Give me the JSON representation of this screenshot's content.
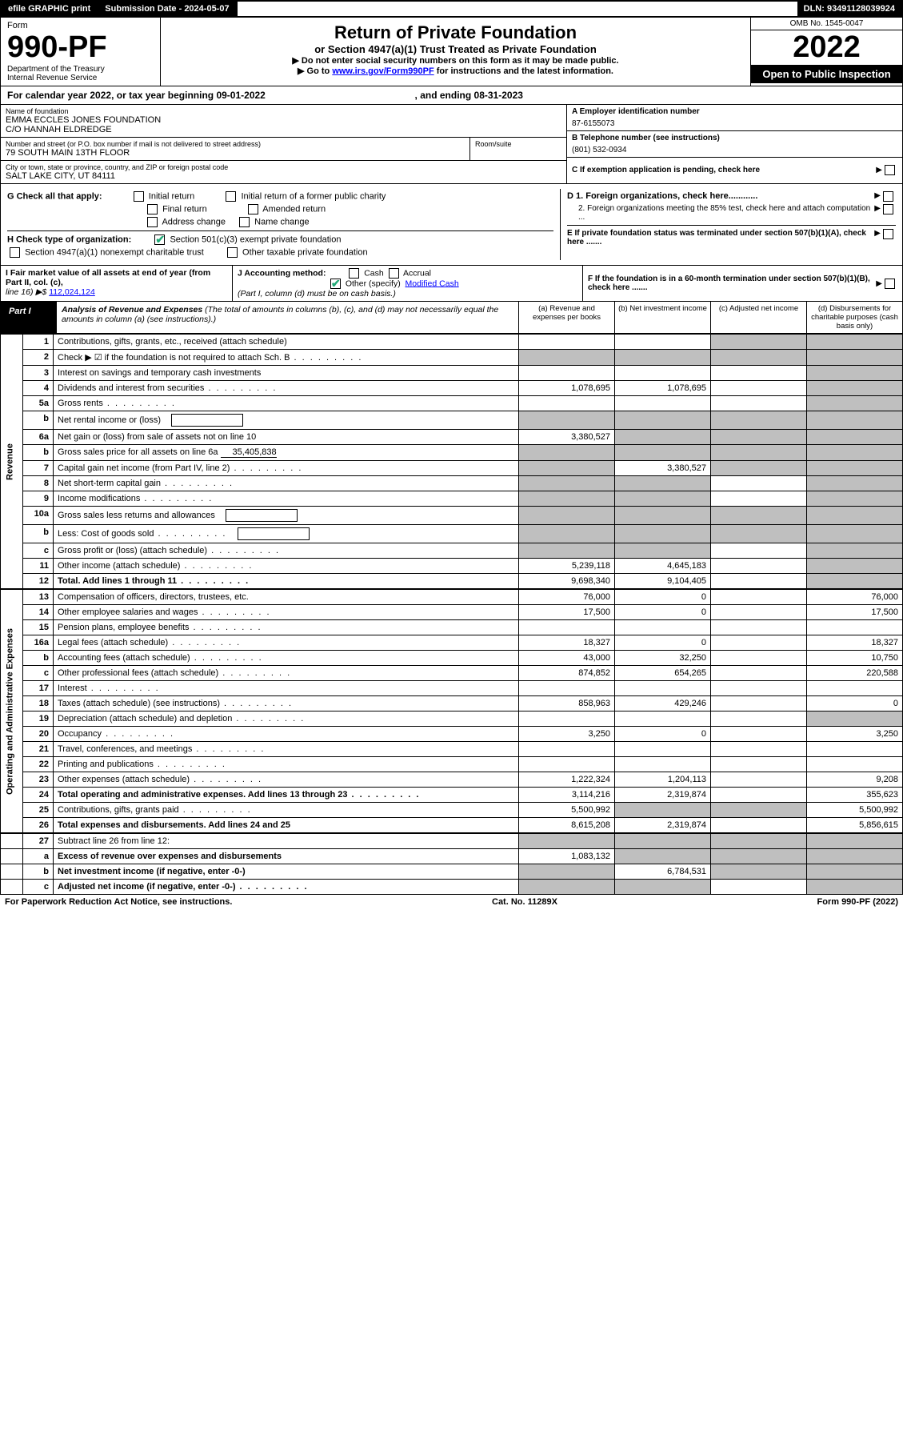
{
  "topbar": {
    "efile": "efile GRAPHIC print",
    "submission": "Submission Date - 2024-05-07",
    "dln": "DLN: 93491128039924"
  },
  "header": {
    "form_word": "Form",
    "form_num": "990-PF",
    "dept": "Department of the Treasury",
    "irs": "Internal Revenue Service",
    "title": "Return of Private Foundation",
    "subtitle": "or Section 4947(a)(1) Trust Treated as Private Foundation",
    "warn1": "▶ Do not enter social security numbers on this form as it may be made public.",
    "warn2_pre": "▶ Go to ",
    "warn2_link": "www.irs.gov/Form990PF",
    "warn2_post": " for instructions and the latest information.",
    "omb": "OMB No. 1545-0047",
    "year": "2022",
    "open": "Open to Public Inspection"
  },
  "cal_year": {
    "pre": "For calendar year 2022, or tax year beginning ",
    "begin": "09-01-2022",
    "mid": " , and ending ",
    "end": "08-31-2023"
  },
  "info": {
    "name_lbl": "Name of foundation",
    "name1": "EMMA ECCLES JONES FOUNDATION",
    "name2": "C/O HANNAH ELDREDGE",
    "addr_lbl": "Number and street (or P.O. box number if mail is not delivered to street address)",
    "addr": "79 SOUTH MAIN 13TH FLOOR",
    "room_lbl": "Room/suite",
    "city_lbl": "City or town, state or province, country, and ZIP or foreign postal code",
    "city": "SALT LAKE CITY, UT  84111",
    "ein_lbl": "A Employer identification number",
    "ein": "87-6155073",
    "phone_lbl": "B Telephone number (see instructions)",
    "phone": "(801) 532-0934",
    "c_lbl": "C If exemption application is pending, check here",
    "d1_lbl": "D 1. Foreign organizations, check here............",
    "d2_lbl": "2. Foreign organizations meeting the 85% test, check here and attach computation ...",
    "e_lbl": "E  If private foundation status was terminated under section 507(b)(1)(A), check here .......",
    "f_lbl": "F  If the foundation is in a 60-month termination under section 507(b)(1)(B), check here ......."
  },
  "g": {
    "lbl": "G Check all that apply:",
    "opts": [
      "Initial return",
      "Initial return of a former public charity",
      "Final return",
      "Amended return",
      "Address change",
      "Name change"
    ]
  },
  "h": {
    "lbl": "H Check type of organization:",
    "o1": "Section 501(c)(3) exempt private foundation",
    "o2": "Section 4947(a)(1) nonexempt charitable trust",
    "o3": "Other taxable private foundation"
  },
  "i": {
    "lbl": "I Fair market value of all assets at end of year (from Part II, col. (c),",
    "line": "line 16) ▶$ ",
    "val": "112,024,124"
  },
  "j": {
    "lbl": "J Accounting method:",
    "cash": "Cash",
    "accrual": "Accrual",
    "other": "Other (specify)",
    "other_val": "Modified Cash",
    "note": "(Part I, column (d) must be on cash basis.)"
  },
  "part1": {
    "lbl": "Part I",
    "title": "Analysis of Revenue and Expenses",
    "note": " (The total of amounts in columns (b), (c), and (d) may not necessarily equal the amounts in column (a) (see instructions).)",
    "col_a": "(a)  Revenue and expenses per books",
    "col_b": "(b)  Net investment income",
    "col_c": "(c)  Adjusted net income",
    "col_d": "(d)  Disbursements for charitable purposes (cash basis only)"
  },
  "side_rev": "Revenue",
  "side_exp": "Operating and Administrative Expenses",
  "rows": [
    {
      "n": "1",
      "t": "Contributions, gifts, grants, etc., received (attach schedule)",
      "a": "",
      "b": "",
      "c": "g",
      "d": "g"
    },
    {
      "n": "2",
      "t": "Check ▶ ☑ if the foundation is not required to attach Sch. B",
      "a": "g",
      "b": "g",
      "c": "g",
      "d": "g",
      "dots": true,
      "checkmark": true
    },
    {
      "n": "3",
      "t": "Interest on savings and temporary cash investments",
      "a": "",
      "b": "",
      "c": "",
      "d": "g"
    },
    {
      "n": "4",
      "t": "Dividends and interest from securities",
      "a": "1,078,695",
      "b": "1,078,695",
      "c": "",
      "d": "g",
      "dots": true
    },
    {
      "n": "5a",
      "t": "Gross rents",
      "a": "",
      "b": "",
      "c": "",
      "d": "g",
      "dots": true
    },
    {
      "n": "b",
      "t": "Net rental income or (loss)",
      "a": "g",
      "b": "g",
      "c": "g",
      "d": "g",
      "inline_box": true
    },
    {
      "n": "6a",
      "t": "Net gain or (loss) from sale of assets not on line 10",
      "a": "3,380,527",
      "b": "g",
      "c": "g",
      "d": "g"
    },
    {
      "n": "b",
      "t": "Gross sales price for all assets on line 6a",
      "a": "g",
      "b": "g",
      "c": "g",
      "d": "g",
      "inline_val": "35,405,838"
    },
    {
      "n": "7",
      "t": "Capital gain net income (from Part IV, line 2)",
      "a": "g",
      "b": "3,380,527",
      "c": "g",
      "d": "g",
      "dots": true
    },
    {
      "n": "8",
      "t": "Net short-term capital gain",
      "a": "g",
      "b": "g",
      "c": "",
      "d": "g",
      "dots": true
    },
    {
      "n": "9",
      "t": "Income modifications",
      "a": "g",
      "b": "g",
      "c": "",
      "d": "g",
      "dots": true
    },
    {
      "n": "10a",
      "t": "Gross sales less returns and allowances",
      "a": "g",
      "b": "g",
      "c": "g",
      "d": "g",
      "inline_box": true
    },
    {
      "n": "b",
      "t": "Less: Cost of goods sold",
      "a": "g",
      "b": "g",
      "c": "g",
      "d": "g",
      "inline_box": true,
      "dots": true
    },
    {
      "n": "c",
      "t": "Gross profit or (loss) (attach schedule)",
      "a": "g",
      "b": "g",
      "c": "",
      "d": "g",
      "dots": true
    },
    {
      "n": "11",
      "t": "Other income (attach schedule)",
      "a": "5,239,118",
      "b": "4,645,183",
      "c": "",
      "d": "g",
      "dots": true
    },
    {
      "n": "12",
      "t": "Total. Add lines 1 through 11",
      "a": "9,698,340",
      "b": "9,104,405",
      "c": "",
      "d": "g",
      "bold": true,
      "dots": true
    }
  ],
  "exp_rows": [
    {
      "n": "13",
      "t": "Compensation of officers, directors, trustees, etc.",
      "a": "76,000",
      "b": "0",
      "c": "",
      "d": "76,000"
    },
    {
      "n": "14",
      "t": "Other employee salaries and wages",
      "a": "17,500",
      "b": "0",
      "c": "",
      "d": "17,500",
      "dots": true
    },
    {
      "n": "15",
      "t": "Pension plans, employee benefits",
      "a": "",
      "b": "",
      "c": "",
      "d": "",
      "dots": true
    },
    {
      "n": "16a",
      "t": "Legal fees (attach schedule)",
      "a": "18,327",
      "b": "0",
      "c": "",
      "d": "18,327",
      "dots": true
    },
    {
      "n": "b",
      "t": "Accounting fees (attach schedule)",
      "a": "43,000",
      "b": "32,250",
      "c": "",
      "d": "10,750",
      "dots": true
    },
    {
      "n": "c",
      "t": "Other professional fees (attach schedule)",
      "a": "874,852",
      "b": "654,265",
      "c": "",
      "d": "220,588",
      "dots": true
    },
    {
      "n": "17",
      "t": "Interest",
      "a": "",
      "b": "",
      "c": "",
      "d": "",
      "dots": true
    },
    {
      "n": "18",
      "t": "Taxes (attach schedule) (see instructions)",
      "a": "858,963",
      "b": "429,246",
      "c": "",
      "d": "0",
      "dots": true
    },
    {
      "n": "19",
      "t": "Depreciation (attach schedule) and depletion",
      "a": "",
      "b": "",
      "c": "",
      "d": "g",
      "dots": true
    },
    {
      "n": "20",
      "t": "Occupancy",
      "a": "3,250",
      "b": "0",
      "c": "",
      "d": "3,250",
      "dots": true
    },
    {
      "n": "21",
      "t": "Travel, conferences, and meetings",
      "a": "",
      "b": "",
      "c": "",
      "d": "",
      "dots": true
    },
    {
      "n": "22",
      "t": "Printing and publications",
      "a": "",
      "b": "",
      "c": "",
      "d": "",
      "dots": true
    },
    {
      "n": "23",
      "t": "Other expenses (attach schedule)",
      "a": "1,222,324",
      "b": "1,204,113",
      "c": "",
      "d": "9,208",
      "dots": true
    },
    {
      "n": "24",
      "t": "Total operating and administrative expenses. Add lines 13 through 23",
      "a": "3,114,216",
      "b": "2,319,874",
      "c": "",
      "d": "355,623",
      "bold": true,
      "dots": true,
      "two_line": true
    },
    {
      "n": "25",
      "t": "Contributions, gifts, grants paid",
      "a": "5,500,992",
      "b": "g",
      "c": "g",
      "d": "5,500,992",
      "dots": true
    },
    {
      "n": "26",
      "t": "Total expenses and disbursements. Add lines 24 and 25",
      "a": "8,615,208",
      "b": "2,319,874",
      "c": "",
      "d": "5,856,615",
      "bold": true
    }
  ],
  "final_rows": [
    {
      "n": "27",
      "t": "Subtract line 26 from line 12:",
      "a": "g",
      "b": "g",
      "c": "g",
      "d": "g"
    },
    {
      "n": "a",
      "t": "Excess of revenue over expenses and disbursements",
      "a": "1,083,132",
      "b": "g",
      "c": "g",
      "d": "g",
      "bold": true
    },
    {
      "n": "b",
      "t": "Net investment income (if negative, enter -0-)",
      "a": "g",
      "b": "6,784,531",
      "c": "g",
      "d": "g",
      "bold": true
    },
    {
      "n": "c",
      "t": "Adjusted net income (if negative, enter -0-)",
      "a": "g",
      "b": "g",
      "c": "",
      "d": "g",
      "bold": true,
      "dots": true
    }
  ],
  "footer": {
    "left": "For Paperwork Reduction Act Notice, see instructions.",
    "mid": "Cat. No. 11289X",
    "right": "Form 990-PF (2022)"
  }
}
